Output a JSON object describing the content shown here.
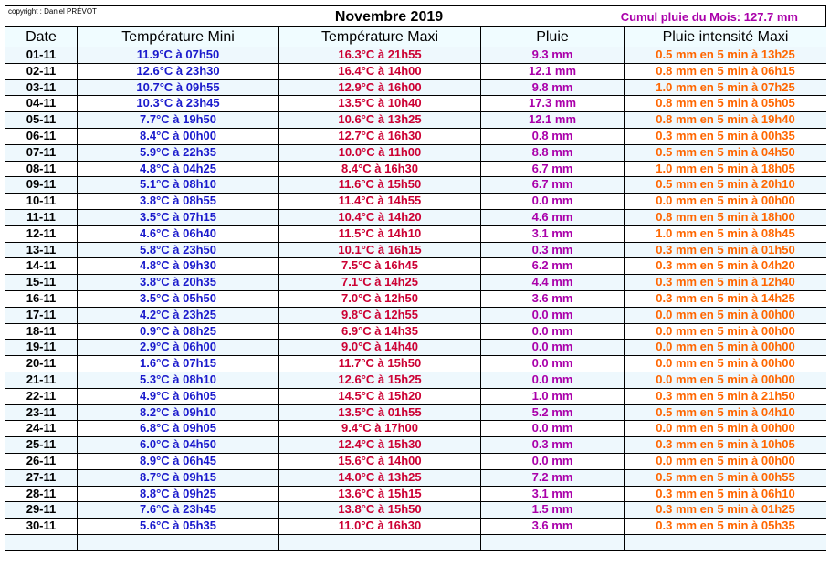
{
  "header": {
    "copyright": "copyright : Daniel PRÉVOT",
    "title": "Novembre 2019",
    "cumul": "Cumul pluie du Mois: 127.7 mm"
  },
  "table": {
    "columns": [
      "Date",
      "Température Mini",
      "Température Maxi",
      "Pluie",
      "Pluie intensité Maxi"
    ],
    "rows": [
      [
        "01-11",
        "11.9°C à 07h50",
        "16.3°C à 21h55",
        "9.3 mm",
        "0.5 mm en 5 min à 13h25"
      ],
      [
        "02-11",
        "12.6°C à 23h30",
        "16.4°C à 14h00",
        "12.1 mm",
        "0.8 mm en 5 min à 06h15"
      ],
      [
        "03-11",
        "10.7°C à 09h55",
        "12.9°C à 16h00",
        "9.8 mm",
        "1.0 mm en 5 min à 07h25"
      ],
      [
        "04-11",
        "10.3°C à 23h45",
        "13.5°C à 10h40",
        "17.3 mm",
        "0.8 mm en 5 min à 05h05"
      ],
      [
        "05-11",
        "7.7°C à 19h50",
        "10.6°C à 13h25",
        "12.1 mm",
        "0.8 mm en 5 min à 19h40"
      ],
      [
        "06-11",
        "8.4°C à 00h00",
        "12.7°C à 16h30",
        "0.8 mm",
        "0.3 mm en 5 min à 00h35"
      ],
      [
        "07-11",
        "5.9°C à 22h35",
        "10.0°C à 11h00",
        "8.8 mm",
        "0.5 mm en 5 min à 04h50"
      ],
      [
        "08-11",
        "4.8°C à 04h25",
        "8.4°C à 16h30",
        "6.7 mm",
        "1.0 mm en 5 min à 18h05"
      ],
      [
        "09-11",
        "5.1°C à 08h10",
        "11.6°C à 15h50",
        "6.7 mm",
        "0.5 mm en 5 min à 20h10"
      ],
      [
        "10-11",
        "3.8°C à 08h55",
        "11.4°C à 14h55",
        "0.0 mm",
        "0.0 mm en 5 min à 00h00"
      ],
      [
        "11-11",
        "3.5°C à 07h15",
        "10.4°C à 14h20",
        "4.6 mm",
        "0.8 mm en 5 min à 18h00"
      ],
      [
        "12-11",
        "4.6°C à 06h40",
        "11.5°C à 14h10",
        "3.1 mm",
        "1.0 mm en 5 min à 08h45"
      ],
      [
        "13-11",
        "5.8°C à 23h50",
        "10.1°C à 16h15",
        "0.3 mm",
        "0.3 mm en 5 min à 01h50"
      ],
      [
        "14-11",
        "4.8°C à 09h30",
        "7.5°C à 16h45",
        "6.2 mm",
        "0.3 mm en 5 min à 04h20"
      ],
      [
        "15-11",
        "3.8°C à 20h35",
        "7.1°C à 14h25",
        "4.4 mm",
        "0.3 mm en 5 min à 12h40"
      ],
      [
        "16-11",
        "3.5°C à 05h50",
        "7.0°C à 12h50",
        "3.6 mm",
        "0.3 mm en 5 min à 14h25"
      ],
      [
        "17-11",
        "4.2°C à 23h25",
        "9.8°C à 12h55",
        "0.0 mm",
        "0.0 mm en 5 min à 00h00"
      ],
      [
        "18-11",
        "0.9°C à 08h25",
        "6.9°C à 14h35",
        "0.0 mm",
        "0.0 mm en 5 min à 00h00"
      ],
      [
        "19-11",
        "2.9°C à 06h00",
        "9.0°C à 14h40",
        "0.0 mm",
        "0.0 mm en 5 min à 00h00"
      ],
      [
        "20-11",
        "1.6°C à 07h15",
        "11.7°C à 15h50",
        "0.0 mm",
        "0.0 mm en 5 min à 00h00"
      ],
      [
        "21-11",
        "5.3°C à 08h10",
        "12.6°C à 15h25",
        "0.0 mm",
        "0.0 mm en 5 min à 00h00"
      ],
      [
        "22-11",
        "4.9°C à 06h05",
        "14.5°C à 15h20",
        "1.0 mm",
        "0.3 mm en 5 min à 21h50"
      ],
      [
        "23-11",
        "8.2°C à 09h10",
        "13.5°C à 01h55",
        "5.2 mm",
        "0.5 mm en 5 min à 04h10"
      ],
      [
        "24-11",
        "6.8°C à 09h05",
        "9.4°C à 17h00",
        "0.0 mm",
        "0.0 mm en 5 min à 00h00"
      ],
      [
        "25-11",
        "6.0°C à 04h50",
        "12.4°C à 15h30",
        "0.3 mm",
        "0.3 mm en 5 min à 10h05"
      ],
      [
        "26-11",
        "8.9°C à 06h45",
        "15.6°C à 14h00",
        "0.0 mm",
        "0.0 mm en 5 min à 00h00"
      ],
      [
        "27-11",
        "8.7°C à 09h15",
        "14.0°C à 13h25",
        "7.2 mm",
        "0.5 mm en 5 min à 00h55"
      ],
      [
        "28-11",
        "8.8°C à 09h25",
        "13.6°C à 15h15",
        "3.1 mm",
        "0.3 mm en 5 min à 06h10"
      ],
      [
        "29-11",
        "7.6°C à 23h45",
        "13.8°C à 15h50",
        "1.5 mm",
        "0.3 mm en 5 min à 01h25"
      ],
      [
        "30-11",
        "5.6°C à 05h35",
        "11.0°C à 16h30",
        "3.6 mm",
        "0.3 mm en 5 min à 05h35"
      ]
    ]
  }
}
